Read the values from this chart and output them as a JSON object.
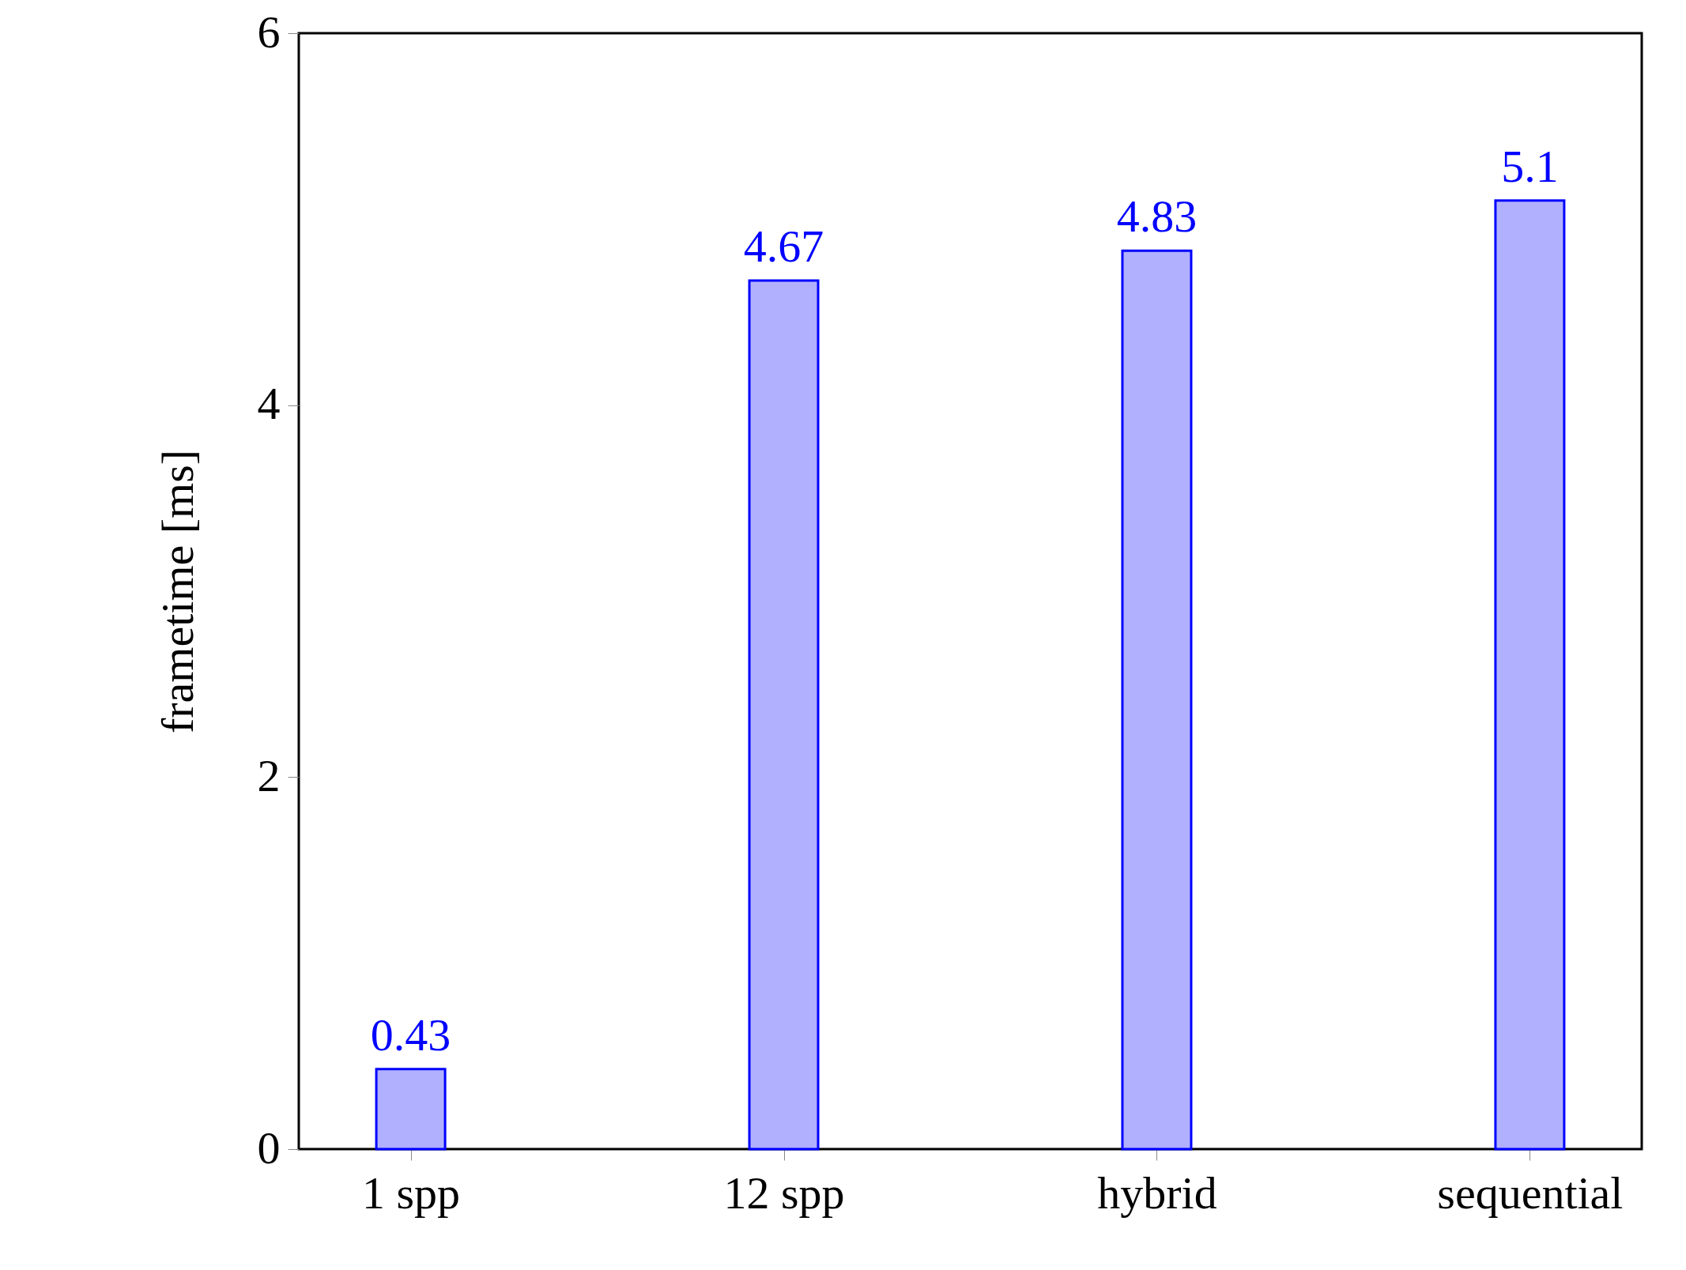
{
  "chart_data": {
    "type": "bar",
    "ylabel": "frametime [ms]",
    "categories": [
      "1 spp",
      "12 spp",
      "hybrid",
      "sequential"
    ],
    "values": [
      0.43,
      4.67,
      4.83,
      5.1
    ],
    "color": "#b0b0ff",
    "ylim": [
      0,
      6
    ],
    "yticks": [
      0,
      2,
      4,
      6
    ],
    "grid": false,
    "data_labels": true
  }
}
